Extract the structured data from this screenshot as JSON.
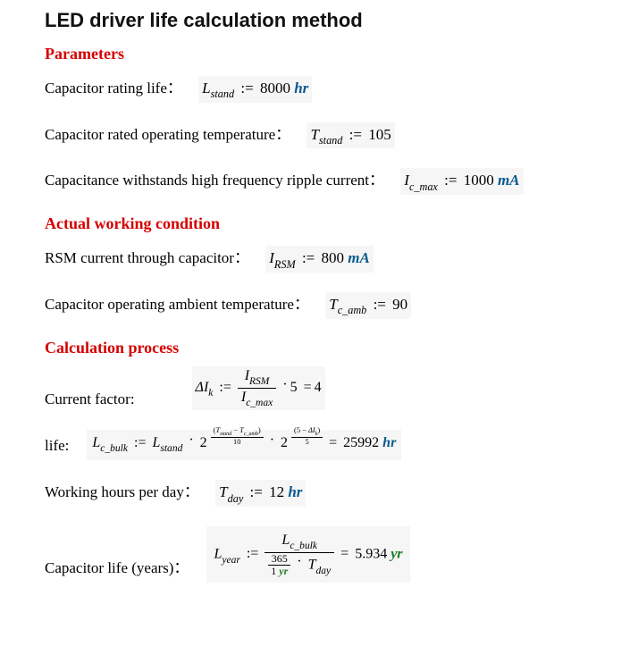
{
  "colors": {
    "title": "#111111",
    "section": "#d40000",
    "unit_hr": "#0a5a8f",
    "unit_mA": "#0a5a8f",
    "unit_yr": "#1f7a1f",
    "formula_bg": "#f6f6f6"
  },
  "title": "LED driver life calculation method",
  "sections": {
    "params": "Parameters",
    "actual": "Actual working condition",
    "calc": "Calculation process"
  },
  "labels": {
    "cap_rating_life": "Capacitor rating life：",
    "cap_rated_temp": "Capacitor rated operating temperature：",
    "cap_ripple": "Capacitance withstands high frequency ripple current：",
    "rsm_current": "RSM current through capacitor：",
    "cap_op_amb": "Capacitor operating ambient temperature：",
    "current_factor": "Current factor:",
    "life": "life:",
    "hours_per_day": "Working hours per day：",
    "cap_life_years": "Capacitor life (years)："
  },
  "formulas": {
    "Lstand": {
      "sym": "L",
      "sub": "stand",
      "val": "8000",
      "unit": "hr"
    },
    "Tstand": {
      "sym": "T",
      "sub": "stand",
      "val": "105"
    },
    "Icmax": {
      "sym": "I",
      "sub": "c_max",
      "val": "1000",
      "unit": "mA"
    },
    "IRSM": {
      "sym": "I",
      "sub": "RSM",
      "val": "800",
      "unit": "mA"
    },
    "Tcamb": {
      "sym": "T",
      "sub": "c_amb",
      "val": "90"
    },
    "Tday": {
      "sym": "T",
      "sub": "day",
      "val": "12",
      "unit": "hr"
    },
    "deltaIk": {
      "sym": "ΔI",
      "sub": "k",
      "num_sym": "I",
      "num_sub": "RSM",
      "den_sym": "I",
      "den_sub": "c_max",
      "mult": "5",
      "res": "4"
    },
    "Lcbulk": {
      "sym": "L",
      "sub": "c_bulk",
      "base_sym": "L",
      "base_sub": "stand",
      "exp1_num_a": "T",
      "exp1_num_a_sub": "stand",
      "exp1_num_b": "T",
      "exp1_num_b_sub": "c_amb",
      "exp1_den": "10",
      "exp2_num_const": "5",
      "exp2_num_sym": "ΔI",
      "exp2_num_sub": "k",
      "exp2_den": "5",
      "res": "25992",
      "unit": "hr"
    },
    "Lyear": {
      "sym": "L",
      "sub": "year",
      "num_sym": "L",
      "num_sub": "c_bulk",
      "den_top": "365",
      "den_bot_val": "1",
      "den_bot_unit": "yr",
      "mult_sym": "T",
      "mult_sub": "day",
      "res": "5.934",
      "unit": "yr"
    }
  }
}
